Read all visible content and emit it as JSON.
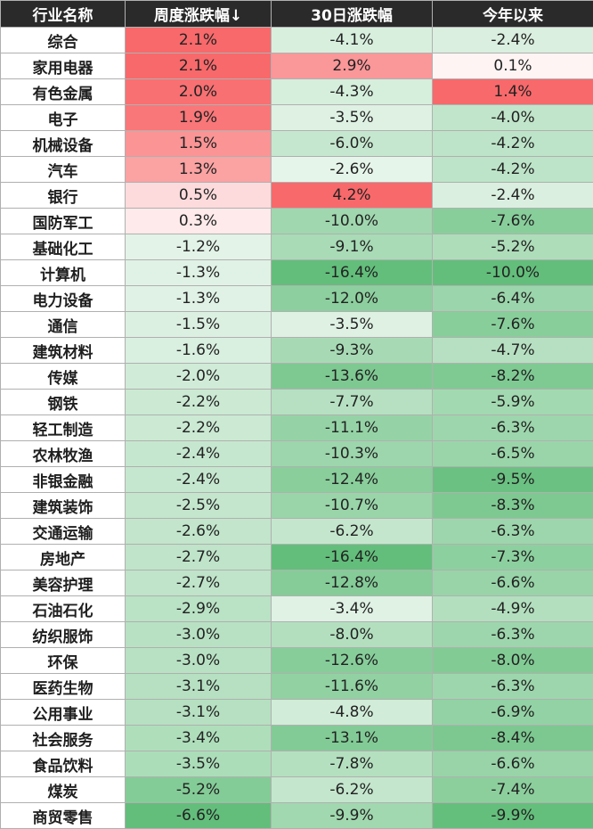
{
  "table": {
    "headers": [
      "行业名称",
      "周度涨跌幅↓",
      "30日涨跌幅",
      "今年以来"
    ],
    "rows": [
      [
        "综合",
        "2.1%",
        "-4.1%",
        "-2.4%"
      ],
      [
        "家用电器",
        "2.1%",
        "2.9%",
        "0.1%"
      ],
      [
        "有色金属",
        "2.0%",
        "-4.3%",
        "1.4%"
      ],
      [
        "电子",
        "1.9%",
        "-3.5%",
        "-4.0%"
      ],
      [
        "机械设备",
        "1.5%",
        "-6.0%",
        "-4.2%"
      ],
      [
        "汽车",
        "1.3%",
        "-2.6%",
        "-4.2%"
      ],
      [
        "银行",
        "0.5%",
        "4.2%",
        "-2.4%"
      ],
      [
        "国防军工",
        "0.3%",
        "-10.0%",
        "-7.6%"
      ],
      [
        "基础化工",
        "-1.2%",
        "-9.1%",
        "-5.2%"
      ],
      [
        "计算机",
        "-1.3%",
        "-16.4%",
        "-10.0%"
      ],
      [
        "电力设备",
        "-1.3%",
        "-12.0%",
        "-6.4%"
      ],
      [
        "通信",
        "-1.5%",
        "-3.5%",
        "-7.6%"
      ],
      [
        "建筑材料",
        "-1.6%",
        "-9.3%",
        "-4.7%"
      ],
      [
        "传媒",
        "-2.0%",
        "-13.6%",
        "-8.2%"
      ],
      [
        "钢铁",
        "-2.2%",
        "-7.7%",
        "-5.9%"
      ],
      [
        "轻工制造",
        "-2.2%",
        "-11.1%",
        "-6.3%"
      ],
      [
        "农林牧渔",
        "-2.4%",
        "-10.3%",
        "-6.5%"
      ],
      [
        "非银金融",
        "-2.4%",
        "-12.4%",
        "-9.5%"
      ],
      [
        "建筑装饰",
        "-2.5%",
        "-10.7%",
        "-8.3%"
      ],
      [
        "交通运输",
        "-2.6%",
        "-6.2%",
        "-6.3%"
      ],
      [
        "房地产",
        "-2.7%",
        "-16.4%",
        "-7.3%"
      ],
      [
        "美容护理",
        "-2.7%",
        "-12.8%",
        "-6.6%"
      ],
      [
        "石油石化",
        "-2.9%",
        "-3.4%",
        "-4.9%"
      ],
      [
        "纺织服饰",
        "-3.0%",
        "-8.0%",
        "-6.3%"
      ],
      [
        "环保",
        "-3.0%",
        "-12.6%",
        "-8.0%"
      ],
      [
        "医药生物",
        "-3.1%",
        "-11.6%",
        "-6.3%"
      ],
      [
        "公用事业",
        "-3.1%",
        "-4.8%",
        "-6.9%"
      ],
      [
        "社会服务",
        "-3.4%",
        "-13.1%",
        "-8.4%"
      ],
      [
        "食品饮料",
        "-3.5%",
        "-7.8%",
        "-6.6%"
      ],
      [
        "煤炭",
        "-5.2%",
        "-6.2%",
        "-7.4%"
      ],
      [
        "商贸零售",
        "-6.6%",
        "-9.9%",
        "-9.9%"
      ]
    ]
  },
  "colors": {
    "header_bg": "#2a2a2a",
    "header_text": "#ffffff",
    "positive": "#f8696b",
    "negative": "#63be7b",
    "neutral": "#ffffff",
    "grid": "#b0b0b0"
  }
}
